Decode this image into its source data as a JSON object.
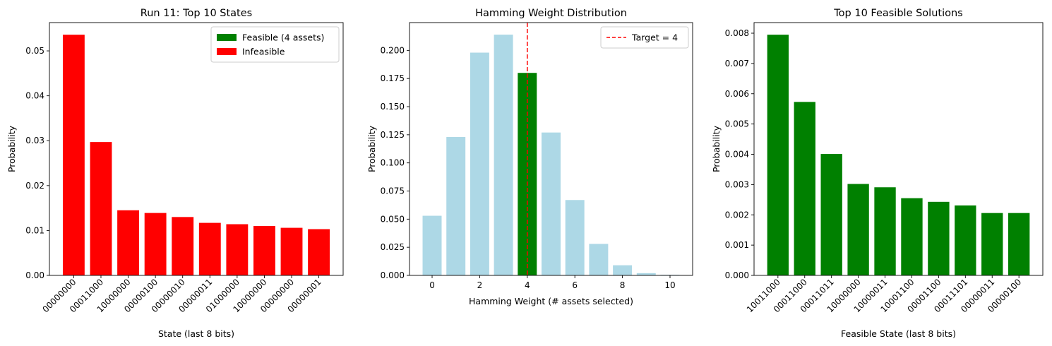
{
  "chart_data": [
    {
      "type": "bar",
      "title": "Run 11: Top 10 States",
      "xlabel": "State (last 8 bits)",
      "ylabel": "Probability",
      "categories": [
        "00000000",
        "00011000",
        "10000000",
        "00000100",
        "00000010",
        "00000011",
        "01000000",
        "10000000",
        "00000000",
        "00000001"
      ],
      "values": [
        0.0536,
        0.0297,
        0.0145,
        0.0139,
        0.013,
        0.0117,
        0.0114,
        0.011,
        0.0106,
        0.0103
      ],
      "colors": [
        "#ff0000",
        "#ff0000",
        "#ff0000",
        "#ff0000",
        "#ff0000",
        "#ff0000",
        "#ff0000",
        "#ff0000",
        "#ff0000",
        "#ff0000"
      ],
      "ylim": [
        0,
        0.0563
      ],
      "yticks": [
        0.0,
        0.01,
        0.02,
        0.03,
        0.04,
        0.05
      ],
      "ytick_labels": [
        "0.00",
        "0.01",
        "0.02",
        "0.03",
        "0.04",
        "0.05"
      ],
      "xtick_rotation": 45,
      "legend": {
        "location": "upper right",
        "entries": [
          {
            "label": "Feasible (4 assets)",
            "color": "#008000"
          },
          {
            "label": "Infeasible",
            "color": "#ff0000"
          }
        ]
      }
    },
    {
      "type": "bar",
      "title": "Hamming Weight Distribution",
      "xlabel": "Hamming Weight (# assets selected)",
      "ylabel": "Probability",
      "x": [
        0,
        1,
        2,
        3,
        4,
        5,
        6,
        7,
        8,
        9,
        10
      ],
      "values": [
        0.053,
        0.123,
        0.198,
        0.214,
        0.18,
        0.127,
        0.067,
        0.028,
        0.009,
        0.002,
        0.0005
      ],
      "colors": [
        "#add8e6",
        "#add8e6",
        "#add8e6",
        "#add8e6",
        "#008000",
        "#add8e6",
        "#add8e6",
        "#add8e6",
        "#add8e6",
        "#add8e6",
        "#add8e6"
      ],
      "xlim": [
        -0.95,
        10.95
      ],
      "ylim": [
        0,
        0.2247
      ],
      "xticks": [
        0,
        2,
        4,
        6,
        8,
        10
      ],
      "xtick_labels": [
        "0",
        "2",
        "4",
        "6",
        "8",
        "10"
      ],
      "yticks": [
        0.0,
        0.025,
        0.05,
        0.075,
        0.1,
        0.125,
        0.15,
        0.175,
        0.2
      ],
      "ytick_labels": [
        "0.000",
        "0.025",
        "0.050",
        "0.075",
        "0.100",
        "0.125",
        "0.150",
        "0.175",
        "0.200"
      ],
      "vline": {
        "x": 4,
        "color": "#ff0000",
        "style": "dashed",
        "label": "Target = 4"
      },
      "legend": {
        "location": "upper right",
        "entries": [
          {
            "label": "Target = 4",
            "color": "#ff0000",
            "style": "dashed"
          }
        ]
      }
    },
    {
      "type": "bar",
      "title": "Top 10 Feasible Solutions",
      "xlabel": "Feasible State (last 8 bits)",
      "ylabel": "Probability",
      "categories": [
        "10011000",
        "00011000",
        "00011011",
        "10000000",
        "10000011",
        "10001100",
        "00001100",
        "00011101",
        "00000011",
        "00000100"
      ],
      "values": [
        0.00795,
        0.00573,
        0.00401,
        0.00302,
        0.00291,
        0.00255,
        0.00243,
        0.00231,
        0.00206,
        0.00206
      ],
      "colors": [
        "#008000",
        "#008000",
        "#008000",
        "#008000",
        "#008000",
        "#008000",
        "#008000",
        "#008000",
        "#008000",
        "#008000"
      ],
      "ylim": [
        0,
        0.00835
      ],
      "yticks": [
        0.0,
        0.001,
        0.002,
        0.003,
        0.004,
        0.005,
        0.006,
        0.007,
        0.008
      ],
      "ytick_labels": [
        "0.000",
        "0.001",
        "0.002",
        "0.003",
        "0.004",
        "0.005",
        "0.006",
        "0.007",
        "0.008"
      ],
      "xtick_rotation": 45
    }
  ]
}
